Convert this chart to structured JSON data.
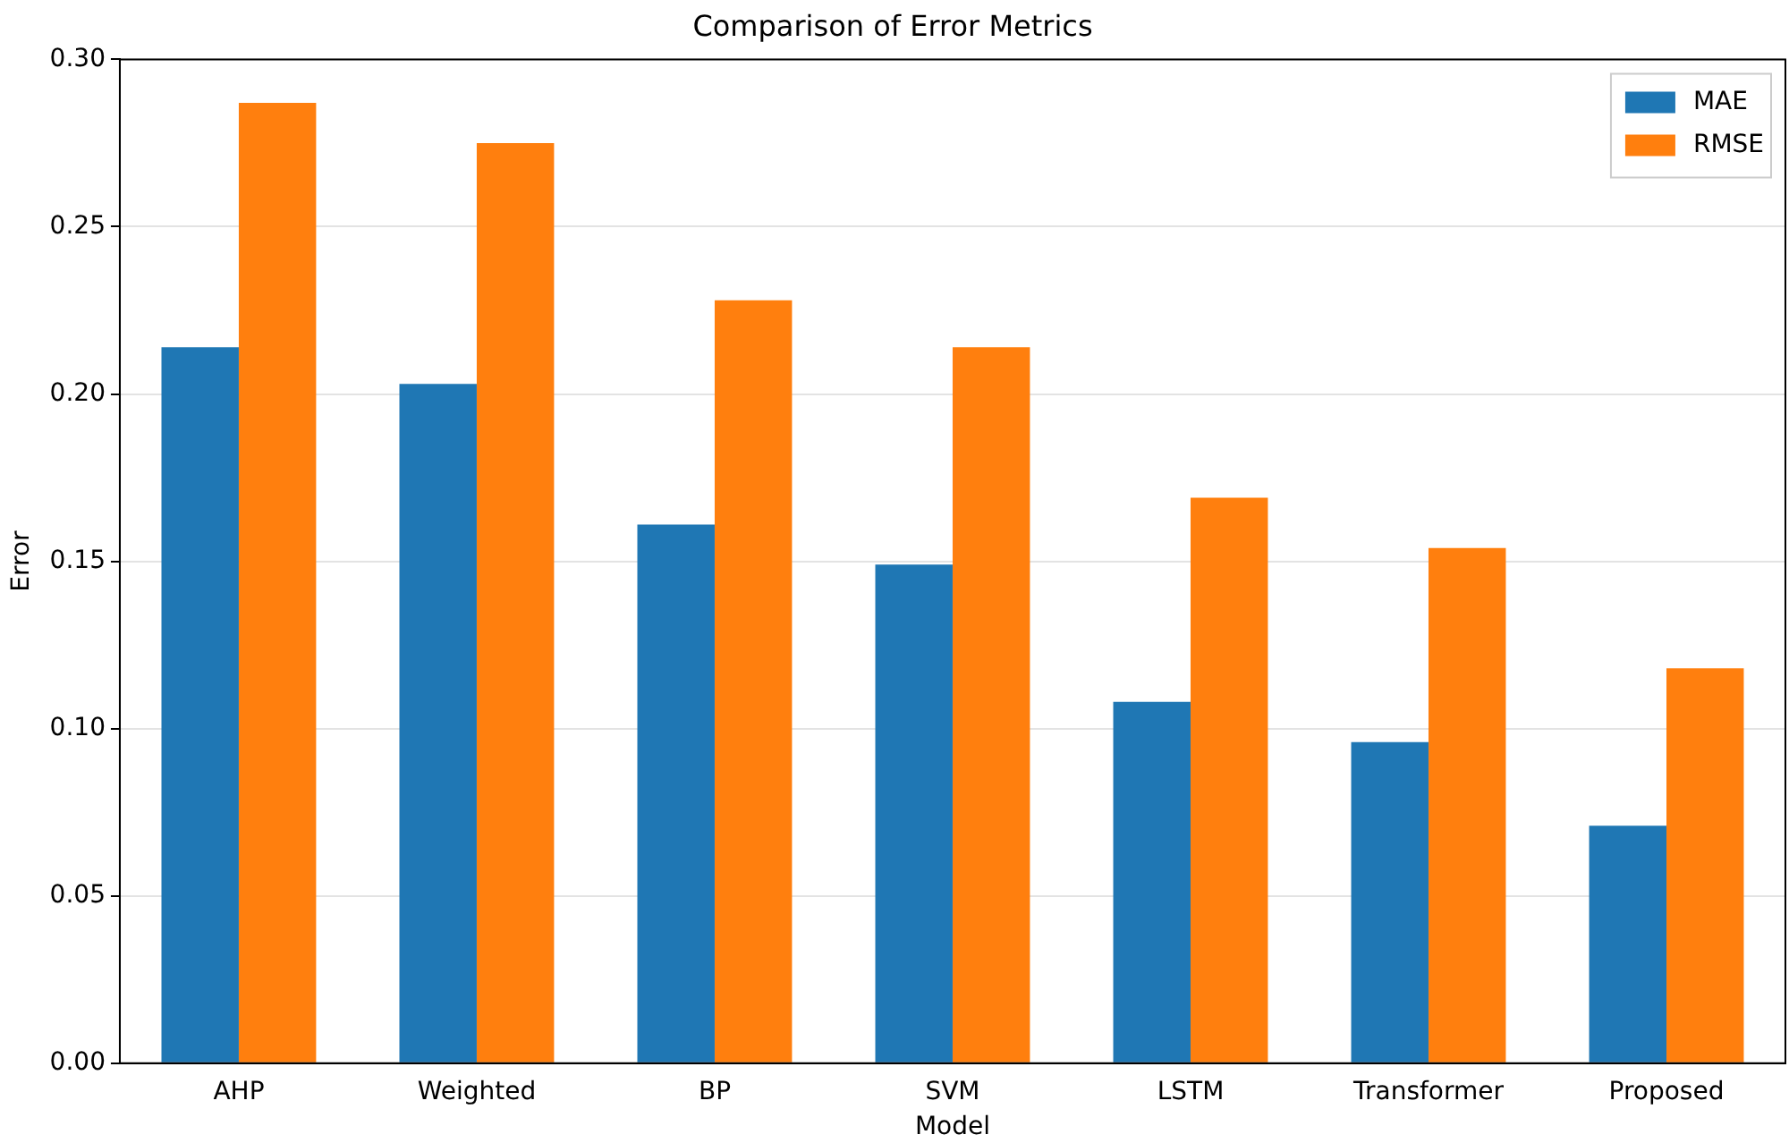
{
  "chart_data": {
    "type": "bar",
    "title": "Comparison of Error Metrics",
    "xlabel": "Model",
    "ylabel": "Error",
    "categories": [
      "AHP",
      "Weighted",
      "BP",
      "SVM",
      "LSTM",
      "Transformer",
      "Proposed"
    ],
    "series": [
      {
        "name": "MAE",
        "color": "#1f77b4",
        "values": [
          0.214,
          0.203,
          0.161,
          0.149,
          0.108,
          0.096,
          0.071
        ]
      },
      {
        "name": "RMSE",
        "color": "#ff7f0e",
        "values": [
          0.287,
          0.275,
          0.228,
          0.214,
          0.169,
          0.154,
          0.118
        ]
      }
    ],
    "ylim": [
      0,
      0.3
    ],
    "yticks": [
      {
        "value": 0,
        "label": "0.00"
      },
      {
        "value": 0.05,
        "label": "0.05"
      },
      {
        "value": 0.1,
        "label": "0.10"
      },
      {
        "value": 0.15,
        "label": "0.15"
      },
      {
        "value": 0.2,
        "label": "0.20"
      },
      {
        "value": 0.25,
        "label": "0.25"
      },
      {
        "value": 0.3,
        "label": "0.30"
      }
    ],
    "grid": "y",
    "legend": "top right"
  }
}
